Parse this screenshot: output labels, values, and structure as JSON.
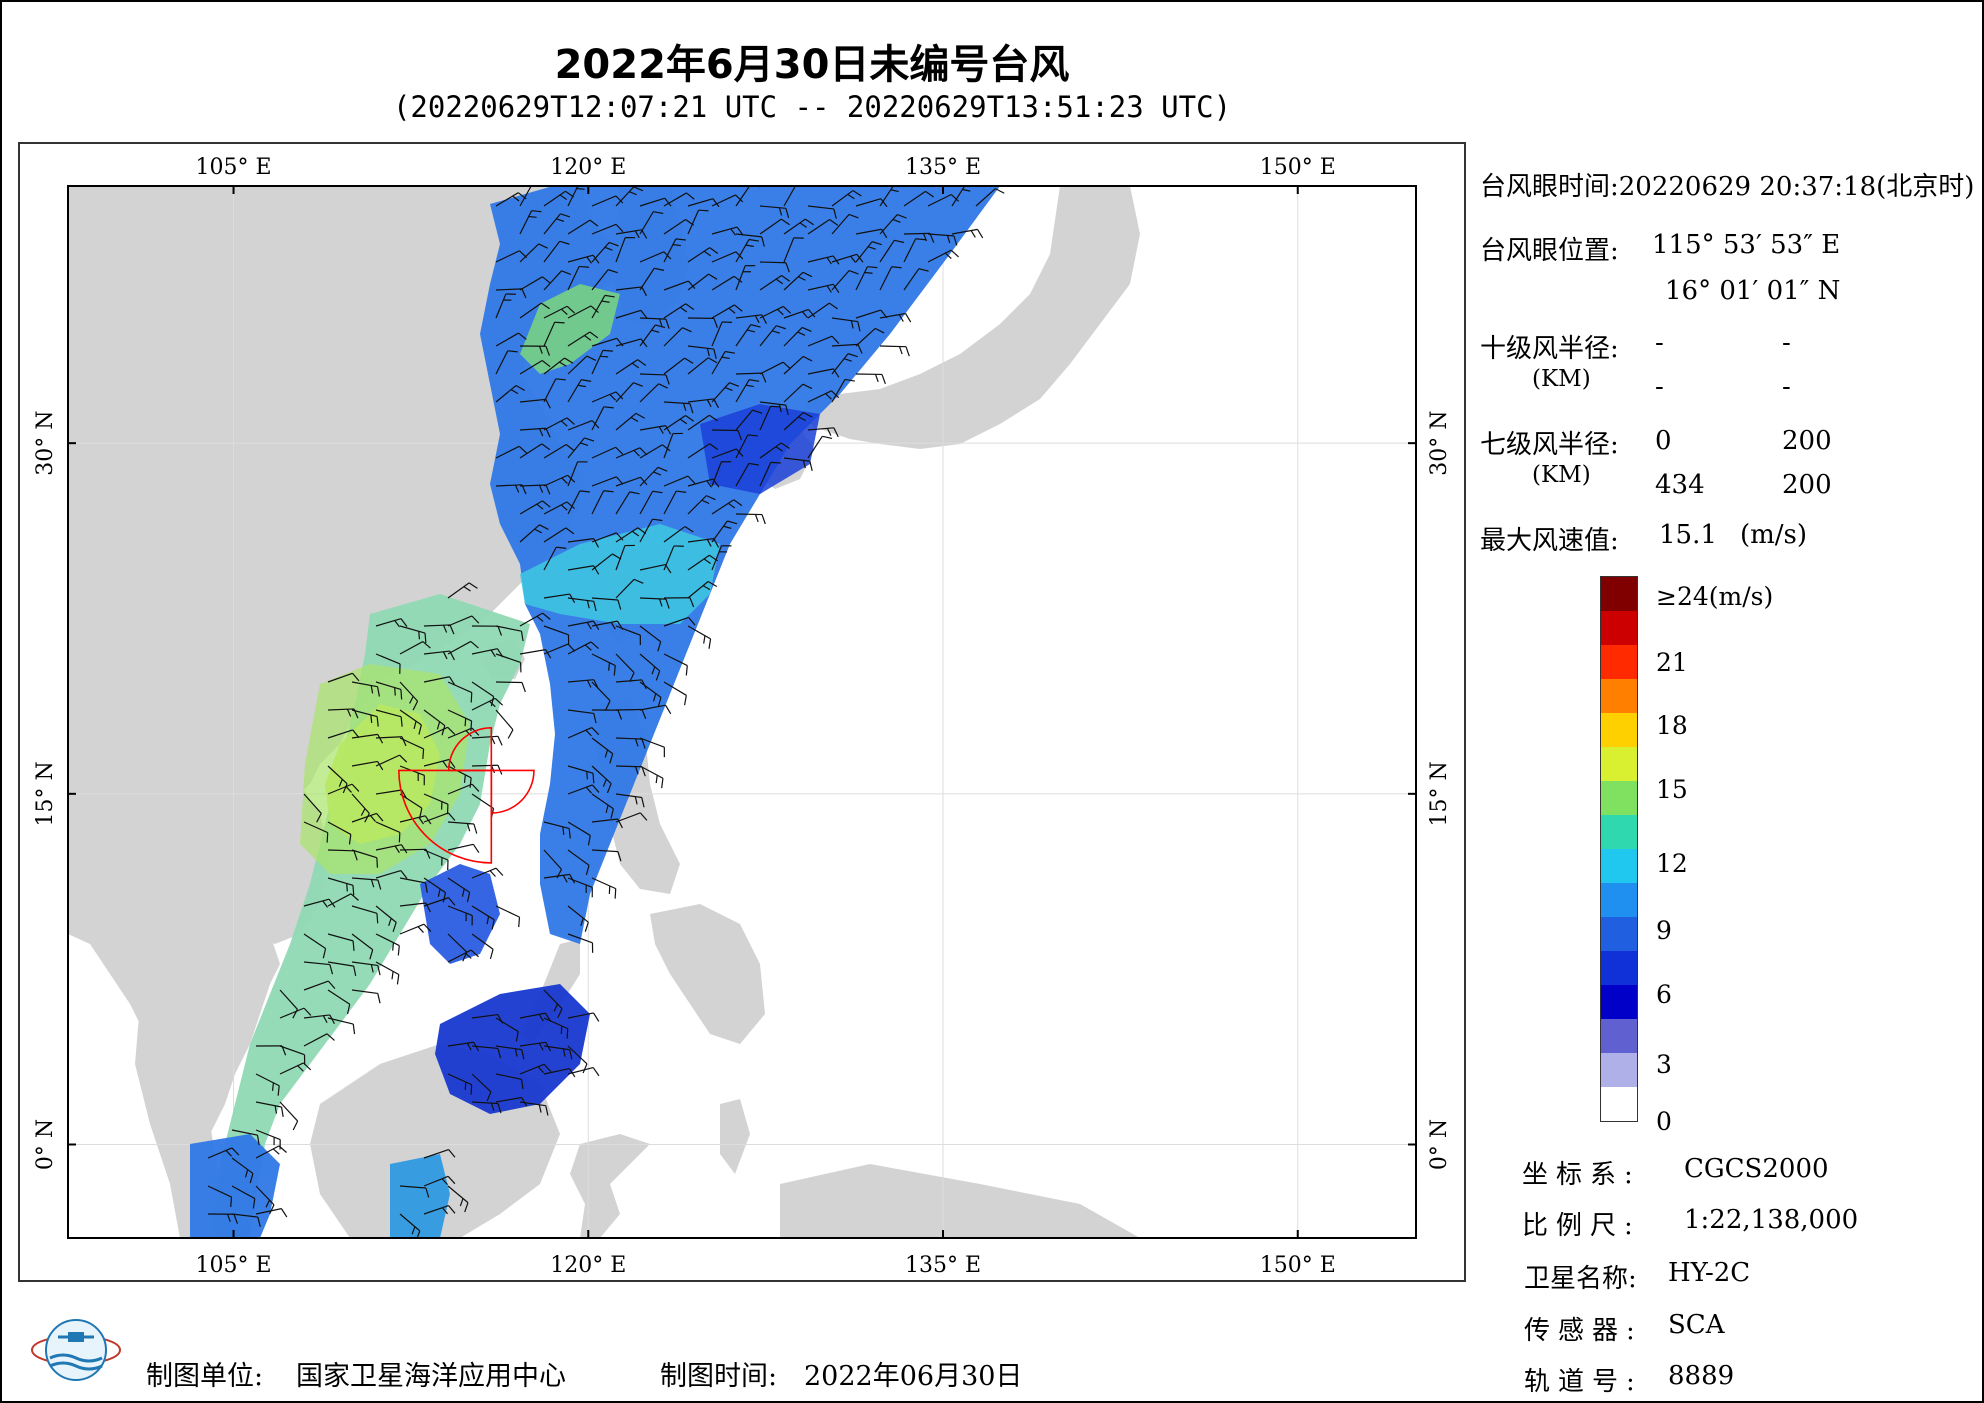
{
  "title": "2022年6月30日未编号台风",
  "subtitle": "(20220629T12:07:21 UTC -- 20220629T13:51:23 UTC)",
  "map": {
    "lon_range": [
      98,
      155
    ],
    "lat_range": [
      -4,
      41
    ],
    "lon_ticks": [
      105,
      120,
      135,
      150
    ],
    "lat_ticks": [
      0,
      15,
      30
    ],
    "lon_tick_labels": [
      "105° E",
      "120° E",
      "135° E",
      "150° E"
    ],
    "lat_tick_labels": [
      "0° N",
      "15° N",
      "30° N"
    ],
    "typhoon_eye": {
      "lon": 115.9,
      "lat": 16.0
    },
    "colors": {
      "land": "#d3d3d3",
      "ocean": "#ffffff",
      "wind_circle": "#ff0000"
    }
  },
  "info": {
    "eye_time_label": "台风眼时间:",
    "eye_time_value": "20220629 20:37:18(北京时)",
    "eye_pos_label": "台风眼位置:",
    "eye_lon_value": "115° 53′ 53″ E",
    "eye_lat_value": "16° 01′ 01″ N",
    "r10_label": "十级风半径:",
    "r10_unit": "(KM)",
    "r10_values": [
      "-",
      "-",
      "-",
      "-"
    ],
    "r7_label": "七级风半径:",
    "r7_unit": "(KM)",
    "r7_values": [
      "0",
      "200",
      "434",
      "200"
    ],
    "max_wind_label": "最大风速值:",
    "max_wind_value": "15.1",
    "max_wind_unit": "(m/s)"
  },
  "colorbar": {
    "labels": [
      "≥24(m/s)",
      "21",
      "18",
      "15",
      "12",
      "9",
      "6",
      "3",
      "0"
    ],
    "colors": [
      "#800000",
      "#cc0000",
      "#ff2a00",
      "#ff8000",
      "#ffd000",
      "#d8f030",
      "#80e060",
      "#30d8b0",
      "#20c8f0",
      "#2090f0",
      "#2060e0",
      "#1030d8",
      "#0000c8",
      "#6060d0",
      "#b0b0e8",
      "#ffffff"
    ]
  },
  "meta": {
    "crs_label": "坐标系:",
    "crs_value": "CGCS2000",
    "scale_label": "比例尺:",
    "scale_value": "1:22,138,000",
    "satellite_label": "卫星名称:",
    "satellite_value": "HY-2C",
    "sensor_label": "传感器:",
    "sensor_value": "SCA",
    "orbit_label": "轨道号:",
    "orbit_value": "8889"
  },
  "footer": {
    "unit_label": "制图单位:",
    "unit_value": "国家卫星海洋应用中心",
    "time_label": "制图时间:",
    "time_value": "2022年06月30日"
  }
}
